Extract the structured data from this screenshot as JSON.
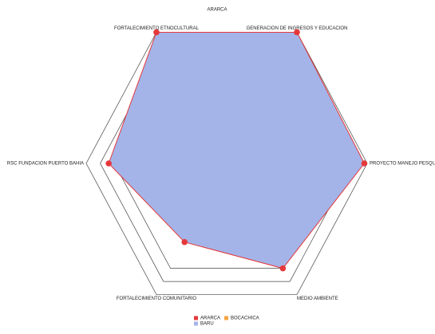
{
  "chart_data": {
    "type": "radar",
    "title": "ARARCA",
    "categories": [
      "FORTALECIMIENTO ETNOCULTURAL",
      "GENERACION DE INGRESOS Y EDUCACION",
      "PROYECTO MANEJO PESQUERO",
      "MEDIO AMBIENTE",
      "FORTALECIMIENTO COMUNITARIO",
      "RSC FUNDACION PUERTO BAHIA"
    ],
    "series": [
      {
        "name": "ARARCA",
        "color": "#e5383b",
        "values": [
          100,
          100,
          98,
          80,
          60,
          84
        ]
      },
      {
        "name": "BOCACHICA",
        "color": "#f4a340",
        "values": [
          null,
          null,
          null,
          null,
          null,
          null
        ]
      },
      {
        "name": "BARU",
        "color": "#a4b4e8",
        "values": [
          100,
          100,
          98,
          80,
          60,
          84
        ]
      }
    ],
    "ylim": [
      0,
      100
    ],
    "yticks": [
      80,
      90,
      100
    ],
    "grid": true
  }
}
